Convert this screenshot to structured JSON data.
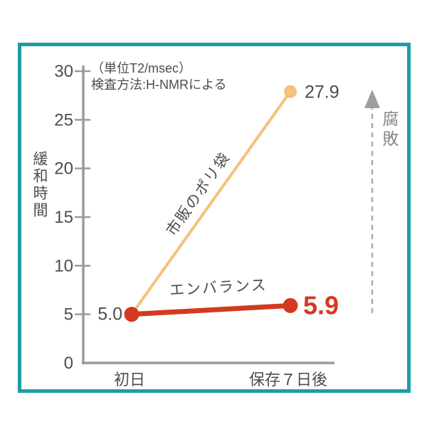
{
  "frame": {
    "border_color": "#1b9da5"
  },
  "chart_data": {
    "type": "line",
    "unit_note": "（単位T2/msec）",
    "method_note": "検査方法:H-NMRによる",
    "ylabel": "緩和時間",
    "categories": [
      "初日",
      "保存７日後"
    ],
    "ylim": [
      0,
      30
    ],
    "y_ticks": [
      0,
      5,
      10,
      15,
      20,
      25,
      30
    ],
    "grid": false,
    "legend_position": "inline-on-lines",
    "axis_color": "#9b9b9b",
    "text_color": "#4d4d4d",
    "series": [
      {
        "name": "市販のポリ袋",
        "values": [
          5.0,
          27.9
        ],
        "color": "#f5c17c",
        "line_width": 4,
        "value_label_weight": "normal",
        "value_label_color": "#4d4d4d"
      },
      {
        "name": "エンバランス",
        "values": [
          5.0,
          5.9
        ],
        "color": "#d43a1e",
        "line_width": 7,
        "value_label_weight": "bold",
        "value_label_color": "#d43a1e"
      }
    ],
    "shared_start_label": "5.0",
    "arrow_annotation": {
      "label": "腐敗",
      "direction": "up",
      "line_color": "#aaaaaa",
      "head_color": "#9e9e9e"
    }
  }
}
